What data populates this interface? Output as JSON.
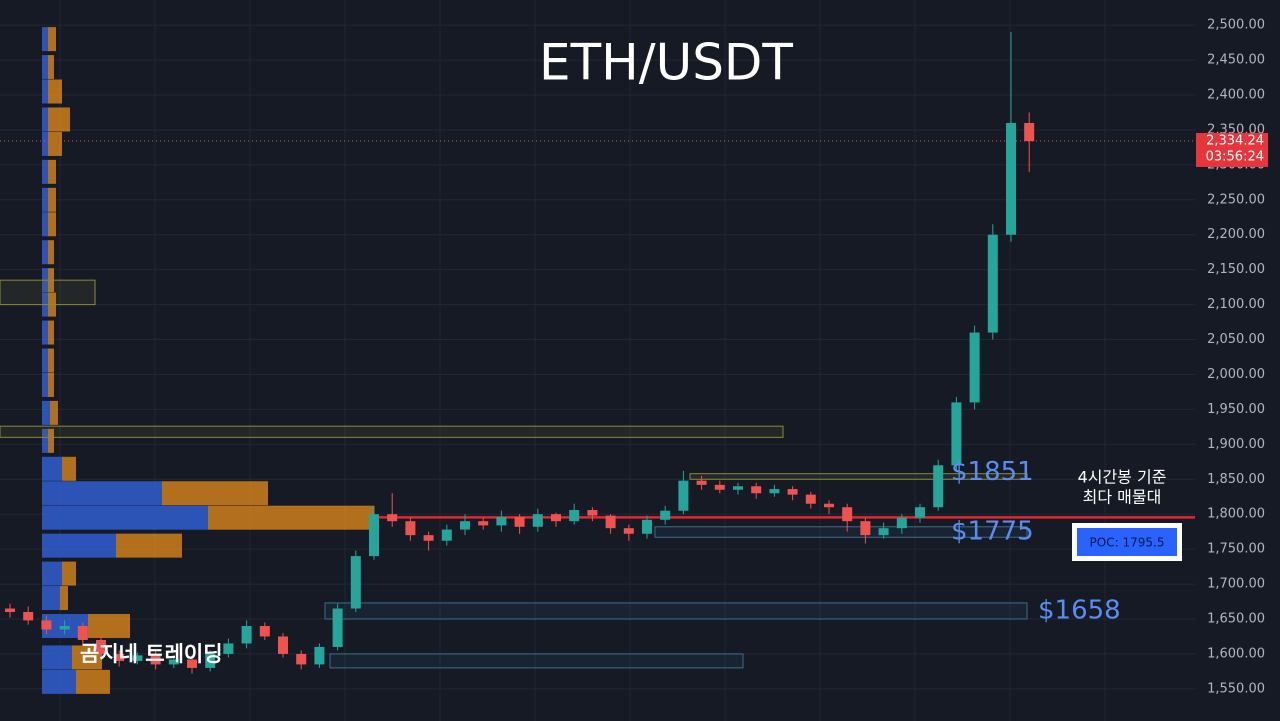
{
  "chart_data": {
    "type": "candlestick",
    "title": "ETH/USDT",
    "ylim": [
      1504,
      2536
    ],
    "yticks": [
      {
        "value": 1550,
        "label": "1,550.00"
      },
      {
        "value": 1600,
        "label": "1,600.00"
      },
      {
        "value": 1650,
        "label": "1,650.00"
      },
      {
        "value": 1700,
        "label": "1,700.00"
      },
      {
        "value": 1750,
        "label": "1,750.00"
      },
      {
        "value": 1800,
        "label": "1,800.00"
      },
      {
        "value": 1850,
        "label": "1,850.00"
      },
      {
        "value": 1900,
        "label": "1,900.00"
      },
      {
        "value": 1950,
        "label": "1,950.00"
      },
      {
        "value": 2000,
        "label": "2,000.00"
      },
      {
        "value": 2050,
        "label": "2,050.00"
      },
      {
        "value": 2100,
        "label": "2,100.00"
      },
      {
        "value": 2150,
        "label": "2,150.00"
      },
      {
        "value": 2200,
        "label": "2,200.00"
      },
      {
        "value": 2250,
        "label": "2,250.00"
      },
      {
        "value": 2300,
        "label": "2,300.00"
      },
      {
        "value": 2350,
        "label": "2,350.00"
      },
      {
        "value": 2400,
        "label": "2,400.00"
      },
      {
        "value": 2450,
        "label": "2,450.00"
      },
      {
        "value": 2500,
        "label": "2,500.00"
      }
    ],
    "grid": true,
    "up_color": "#26a69a",
    "down_color": "#ef5350",
    "open": [
      1665,
      1660,
      1648,
      1635,
      1640,
      1620,
      1600,
      1590,
      1598,
      1585,
      1592,
      1580,
      1600,
      1615,
      1640,
      1625,
      1600,
      1585,
      1610,
      1665,
      1740,
      1800,
      1790,
      1770,
      1762,
      1778,
      1790,
      1784,
      1796,
      1782,
      1800,
      1790,
      1806,
      1798,
      1780,
      1772,
      1792,
      1805,
      1848,
      1842,
      1835,
      1840,
      1830,
      1836,
      1828,
      1815,
      1810,
      1790,
      1770,
      1780,
      1795,
      1810,
      1870,
      1960,
      2060,
      2200,
      2360
    ],
    "high": [
      1672,
      1668,
      1655,
      1648,
      1645,
      1625,
      1605,
      1602,
      1605,
      1595,
      1598,
      1605,
      1622,
      1648,
      1645,
      1630,
      1605,
      1615,
      1672,
      1748,
      1812,
      1830,
      1795,
      1775,
      1785,
      1800,
      1795,
      1805,
      1800,
      1808,
      1802,
      1815,
      1810,
      1800,
      1785,
      1798,
      1812,
      1862,
      1855,
      1848,
      1845,
      1845,
      1842,
      1840,
      1832,
      1820,
      1815,
      1795,
      1788,
      1800,
      1815,
      1878,
      1968,
      2070,
      2215,
      2490,
      2375
    ],
    "low": [
      1652,
      1642,
      1628,
      1628,
      1612,
      1592,
      1582,
      1585,
      1578,
      1580,
      1572,
      1575,
      1595,
      1608,
      1620,
      1595,
      1578,
      1580,
      1605,
      1660,
      1735,
      1782,
      1762,
      1748,
      1755,
      1770,
      1778,
      1775,
      1772,
      1775,
      1782,
      1785,
      1790,
      1772,
      1762,
      1765,
      1785,
      1800,
      1835,
      1830,
      1828,
      1822,
      1825,
      1820,
      1808,
      1800,
      1775,
      1758,
      1765,
      1772,
      1788,
      1805,
      1860,
      1950,
      2050,
      2190,
      2290
    ],
    "close": [
      1660,
      1648,
      1635,
      1640,
      1620,
      1600,
      1590,
      1598,
      1585,
      1592,
      1580,
      1600,
      1615,
      1640,
      1625,
      1600,
      1585,
      1610,
      1665,
      1740,
      1800,
      1790,
      1770,
      1762,
      1778,
      1790,
      1784,
      1796,
      1782,
      1800,
      1790,
      1806,
      1798,
      1780,
      1772,
      1792,
      1805,
      1848,
      1842,
      1835,
      1840,
      1830,
      1836,
      1828,
      1815,
      1810,
      1790,
      1770,
      1780,
      1795,
      1810,
      1870,
      1960,
      2060,
      2200,
      2360,
      2334
    ],
    "volume_profile": {
      "levels": [
        2480,
        2440,
        2405,
        2365,
        2330,
        2290,
        2250,
        2215,
        2175,
        2135,
        2100,
        2060,
        2020,
        1985,
        1945,
        1905,
        1865,
        1830,
        1795,
        1755,
        1715,
        1680,
        1640,
        1595,
        1560
      ],
      "buy": [
        6,
        6,
        6,
        6,
        6,
        6,
        6,
        6,
        6,
        6,
        6,
        6,
        6,
        6,
        8,
        6,
        20,
        120,
        166,
        74,
        20,
        18,
        46,
        30,
        34
      ],
      "sell": [
        8,
        6,
        14,
        22,
        14,
        8,
        8,
        8,
        6,
        6,
        8,
        6,
        6,
        6,
        8,
        6,
        14,
        106,
        166,
        66,
        14,
        8,
        42,
        30,
        34
      ],
      "buy_color": "#2f5fd0",
      "sell_color": "#d9861a"
    },
    "zones": [
      {
        "low": 2100,
        "high": 2135,
        "color": "#8a8a3a"
      },
      {
        "low": 1910,
        "high": 1926,
        "color": "#8a8a3a"
      },
      {
        "low": 1850,
        "high": 1858,
        "color": "#8a8a3a"
      },
      {
        "low": 1767,
        "high": 1782,
        "color": "#3b6f8f"
      },
      {
        "low": 1650,
        "high": 1673,
        "color": "#3b6f8f"
      },
      {
        "low": 1580,
        "high": 1600,
        "color": "#3b6f8f"
      }
    ],
    "zone_labels": [
      "$1851",
      "$1775",
      "$1658"
    ],
    "current_price": {
      "value": 2334.24,
      "label": "2,334.24"
    },
    "countdown": "03:56:24",
    "poc": {
      "value": 1795.5,
      "label": "POC: 1795.5"
    },
    "poc_note": [
      "4시간봉 기준",
      "최다 매물대"
    ],
    "watermark": "곰지네 트레이딩"
  }
}
